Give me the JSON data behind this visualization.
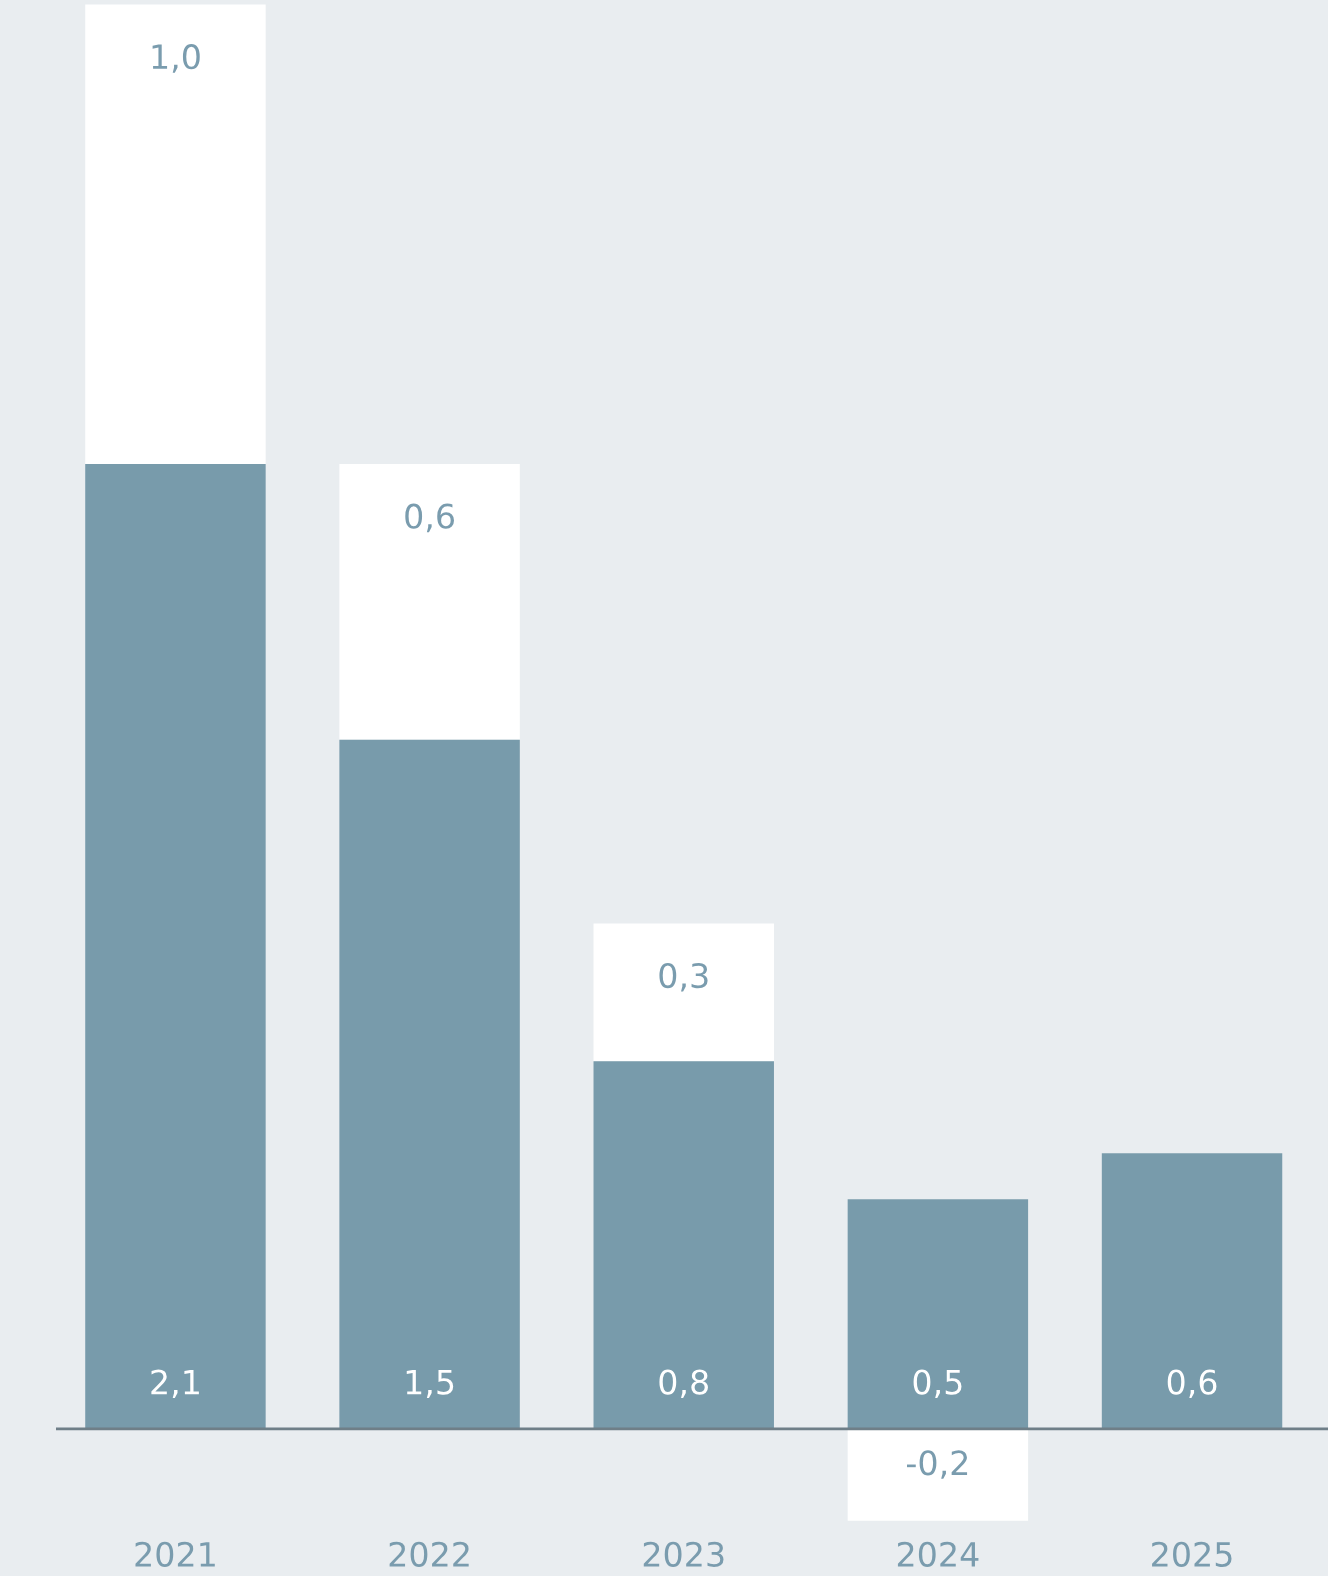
{
  "chart_data": {
    "type": "bar",
    "stacked": true,
    "categories": [
      "2021",
      "2022",
      "2023",
      "2024",
      "2025"
    ],
    "series": [
      {
        "color": "#789bab",
        "values": [
          2.1,
          1.5,
          0.8,
          0.5,
          0.6
        ],
        "value_labels": [
          "2,1",
          "1,5",
          "0,8",
          "0,5",
          "0,6"
        ]
      },
      {
        "color": "#ffffff",
        "values": [
          1.0,
          0.6,
          0.3,
          -0.2,
          null
        ],
        "value_labels": [
          "1,0",
          "0,6",
          "0,3",
          "-0,2",
          null
        ]
      }
    ],
    "ylim": [
      -0.22,
      3.11
    ],
    "grid": false,
    "legend": false,
    "tick_labels": "x"
  }
}
